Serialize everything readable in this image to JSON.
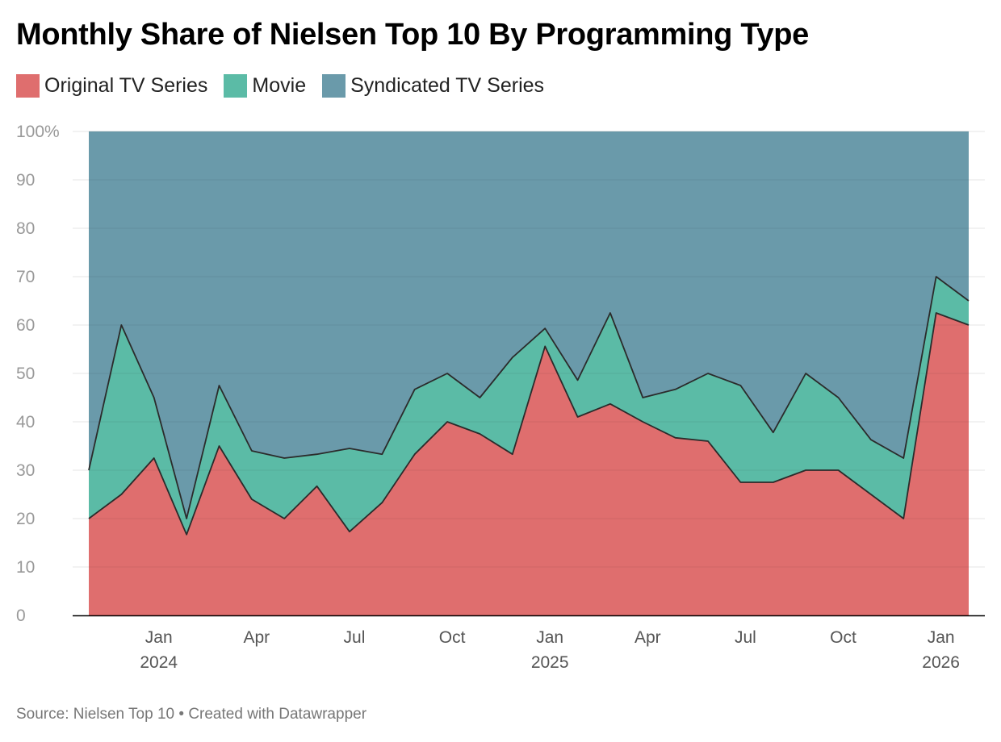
{
  "chart_data": {
    "type": "area",
    "stacked": true,
    "title": "Monthly Share of Nielsen Top 10 By Programming Type",
    "x": [
      "Nov 2023",
      "Dec 2023",
      "Jan 2024",
      "Feb 2024",
      "Mar 2024",
      "Apr 2024",
      "May 2024",
      "Jun 2024",
      "Jul 2024",
      "Aug 2024",
      "Sep 2024",
      "Oct 2024",
      "Nov 2024",
      "Dec 2024",
      "Jan 2025",
      "Feb 2025",
      "Mar 2025",
      "Apr 2025",
      "May 2025",
      "Jun 2025",
      "Jul 2025",
      "Aug 2025",
      "Sep 2025",
      "Oct 2025",
      "Nov 2025",
      "Dec 2025",
      "Jan 2026",
      "Feb 2026"
    ],
    "series": [
      {
        "name": "Original TV Series",
        "color": "#df6e6e",
        "values": [
          20,
          25,
          32.5,
          16.7,
          35,
          24,
          20,
          26.7,
          17.3,
          23.3,
          33.3,
          40,
          37.5,
          33.3,
          55.6,
          41,
          43.7,
          40,
          36.7,
          36,
          27.5,
          27.5,
          30,
          30,
          25,
          20,
          62.5,
          60
        ]
      },
      {
        "name": "Movie",
        "color": "#5bbba6",
        "values": [
          10,
          35,
          12.5,
          3.3,
          12.5,
          10,
          12.5,
          6.6,
          17.2,
          10,
          13.4,
          10,
          7.5,
          20,
          3.7,
          7.6,
          18.8,
          5,
          10,
          14,
          20,
          10.3,
          20,
          15,
          11.3,
          12.5,
          7.5,
          5
        ]
      },
      {
        "name": "Syndicated TV Series",
        "color": "#6a9aaa",
        "values": [
          70,
          40,
          55,
          80,
          52.5,
          66,
          67.5,
          66.7,
          65.5,
          66.7,
          53.3,
          50,
          55,
          46.7,
          40.7,
          51.4,
          37.5,
          55,
          53.3,
          50,
          52.5,
          62.2,
          50,
          55,
          63.7,
          67.5,
          30,
          35
        ]
      }
    ],
    "ylim": [
      0,
      100
    ],
    "y_ticks": [
      "100%",
      "90",
      "80",
      "70",
      "60",
      "50",
      "40",
      "30",
      "20",
      "10",
      "0"
    ],
    "x_ticks": [
      {
        "index": 2,
        "label": "Jan",
        "year": "2024"
      },
      {
        "index": 5,
        "label": "Apr",
        "year": ""
      },
      {
        "index": 8,
        "label": "Jul",
        "year": ""
      },
      {
        "index": 11,
        "label": "Oct",
        "year": ""
      },
      {
        "index": 14,
        "label": "Jan",
        "year": "2025"
      },
      {
        "index": 17,
        "label": "Apr",
        "year": ""
      },
      {
        "index": 20,
        "label": "Jul",
        "year": ""
      },
      {
        "index": 23,
        "label": "Oct",
        "year": ""
      },
      {
        "index": 26,
        "label": "Jan",
        "year": "2026"
      }
    ],
    "grid": true,
    "legend_position": "top-left"
  },
  "legend": {
    "original_label": "Original TV Series",
    "movie_label": "Movie",
    "syndicated_label": "Syndicated TV Series"
  },
  "source_text": "Source: Nielsen Top 10 • Created with Datawrapper"
}
